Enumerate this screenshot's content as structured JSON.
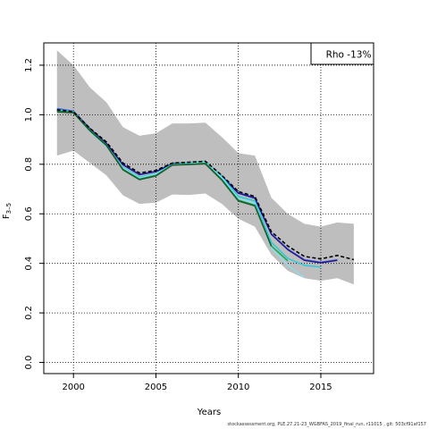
{
  "chart_data": {
    "type": "line",
    "xlabel": "Years",
    "ylabel": "F",
    "ylabel_sub": "3–5",
    "xlim": [
      1998.2,
      2018.2
    ],
    "ylim": [
      -0.045,
      1.29
    ],
    "xticks": [
      2000,
      2005,
      2010,
      2015
    ],
    "yticks": [
      0.0,
      0.2,
      0.4,
      0.6,
      0.8,
      1.0,
      1.2
    ],
    "ytick_labels": [
      "0.0",
      "0.2",
      "0.4",
      "0.6",
      "0.8",
      "1.0",
      "1.2"
    ],
    "grid": "dotted",
    "legend_text": "Rho -13%",
    "legend_position": "top-right",
    "band": {
      "color": "#bebebe",
      "x": [
        1999,
        2000,
        2001,
        2002,
        2003,
        2004,
        2005,
        2006,
        2007,
        2008,
        2009,
        2010,
        2011,
        2012,
        2013,
        2014,
        2015,
        2016,
        2017
      ],
      "upper": [
        1.26,
        1.2,
        1.11,
        1.05,
        0.95,
        0.915,
        0.925,
        0.965,
        0.965,
        0.968,
        0.91,
        0.845,
        0.835,
        0.665,
        0.6,
        0.56,
        0.548,
        0.565,
        0.56
      ],
      "lower": [
        0.835,
        0.855,
        0.805,
        0.755,
        0.675,
        0.64,
        0.645,
        0.678,
        0.676,
        0.682,
        0.64,
        0.58,
        0.548,
        0.435,
        0.37,
        0.34,
        0.33,
        0.34,
        0.315
      ]
    },
    "series": [
      {
        "color": "#000000",
        "dashed": true,
        "width": 1.6,
        "x": [
          1999,
          2000,
          2001,
          2002,
          2003,
          2004,
          2005,
          2006,
          2007,
          2008,
          2009,
          2010,
          2011,
          2012,
          2013,
          2014,
          2015,
          2016,
          2017
        ],
        "y": [
          1.02,
          1.012,
          0.945,
          0.89,
          0.805,
          0.765,
          0.775,
          0.805,
          0.808,
          0.812,
          0.755,
          0.69,
          0.67,
          0.528,
          0.47,
          0.428,
          0.418,
          0.432,
          0.415
        ]
      },
      {
        "color": "#4466ee",
        "dashed": false,
        "width": 1.4,
        "x": [
          1999,
          2000,
          2001,
          2002,
          2003,
          2004,
          2005,
          2006,
          2007,
          2008,
          2009,
          2010,
          2011,
          2012,
          2013,
          2014,
          2015,
          2016
        ],
        "y": [
          1.025,
          1.015,
          0.945,
          0.885,
          0.8,
          0.76,
          0.772,
          0.804,
          0.806,
          0.81,
          0.753,
          0.686,
          0.666,
          0.52,
          0.458,
          0.415,
          0.405,
          0.415
        ]
      },
      {
        "color": "#221188",
        "dashed": false,
        "width": 1.4,
        "x": [
          1999,
          2000,
          2001,
          2002,
          2003,
          2004,
          2005,
          2006,
          2007,
          2008,
          2009,
          2010,
          2011,
          2012,
          2013,
          2014,
          2015,
          2016
        ],
        "y": [
          1.02,
          1.012,
          0.942,
          0.884,
          0.798,
          0.758,
          0.77,
          0.802,
          0.804,
          0.808,
          0.75,
          0.683,
          0.663,
          0.517,
          0.455,
          0.412,
          0.402,
          0.412
        ]
      },
      {
        "color": "#22ccdd",
        "dashed": false,
        "width": 1.4,
        "x": [
          1999,
          2000,
          2001,
          2002,
          2003,
          2004,
          2005,
          2006,
          2007,
          2008,
          2009,
          2010,
          2011,
          2012,
          2013,
          2014,
          2015
        ],
        "y": [
          1.02,
          1.012,
          0.935,
          0.875,
          0.788,
          0.748,
          0.762,
          0.8,
          0.806,
          0.812,
          0.75,
          0.67,
          0.652,
          0.485,
          0.42,
          0.392,
          0.385
        ]
      },
      {
        "color": "#88e0ee",
        "dashed": false,
        "width": 1.4,
        "x": [
          1999,
          2000,
          2001,
          2002,
          2003,
          2004,
          2005,
          2006,
          2007,
          2008,
          2009,
          2010,
          2011,
          2012,
          2013,
          2014
        ],
        "y": [
          1.018,
          1.01,
          0.932,
          0.872,
          0.785,
          0.745,
          0.76,
          0.798,
          0.802,
          0.808,
          0.745,
          0.662,
          0.642,
          0.462,
          0.392,
          0.342
        ]
      },
      {
        "color": "#22aa55",
        "dashed": false,
        "width": 1.6,
        "x": [
          1999,
          2000,
          2001,
          2002,
          2003,
          2004,
          2005,
          2006,
          2007,
          2008,
          2009,
          2010,
          2011,
          2012,
          2013
        ],
        "y": [
          1.015,
          1.01,
          0.938,
          0.878,
          0.78,
          0.74,
          0.755,
          0.798,
          0.8,
          0.804,
          0.738,
          0.655,
          0.635,
          0.47,
          0.41
        ]
      },
      {
        "color": "#1a5c2e",
        "dashed": false,
        "width": 1.6,
        "x": [
          1999,
          2000,
          2001,
          2002,
          2003,
          2004,
          2005,
          2006,
          2007,
          2008,
          2009,
          2010,
          2011,
          2012
        ],
        "y": [
          1.012,
          1.008,
          0.935,
          0.876,
          0.778,
          0.738,
          0.753,
          0.797,
          0.799,
          0.802,
          0.736,
          0.652,
          0.632,
          0.47
        ]
      }
    ]
  },
  "footer": "stockassessment.org, PLE.27.21-23_WGBFAS_2019_final_run, r11015 , git: 503cf91af157"
}
